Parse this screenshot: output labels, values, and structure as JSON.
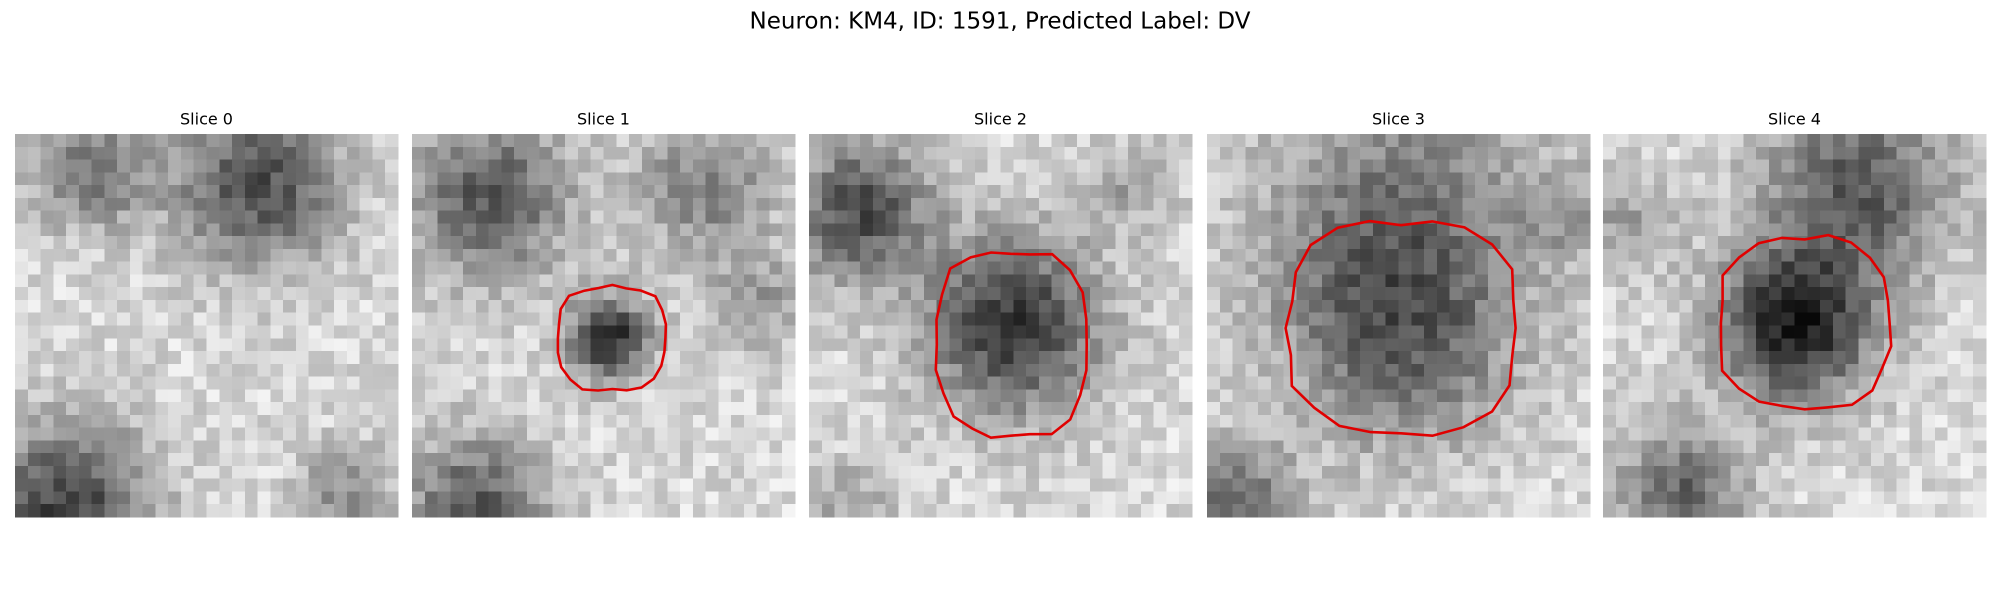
{
  "title": "Neuron: KM4, ID: 1591, Predicted Label: DV",
  "panels": [
    {
      "title": "Slice 0"
    },
    {
      "title": "Slice 1"
    },
    {
      "title": "Slice 2"
    },
    {
      "title": "Slice 3"
    },
    {
      "title": "Slice 4"
    }
  ]
}
